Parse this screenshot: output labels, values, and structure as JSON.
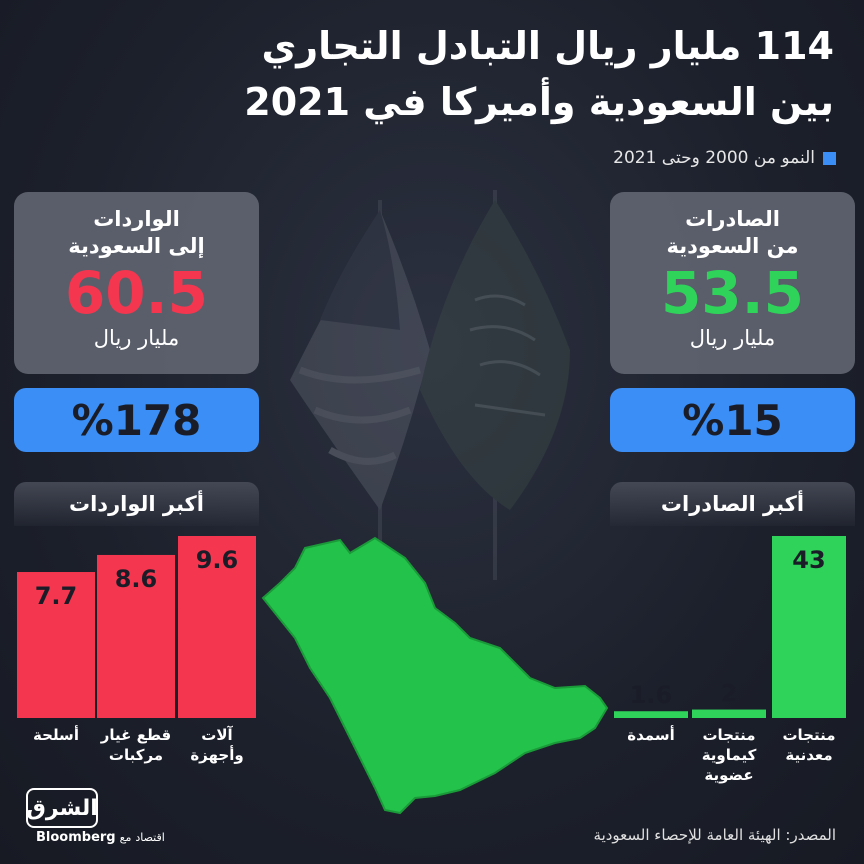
{
  "title_line1": "114 مليار ريال التبادل التجاري",
  "title_line2": "بين السعودية وأميركا في 2021",
  "legend": {
    "label": "النمو من 2000 وحتى 2021",
    "color": "#3a8ef6"
  },
  "exports_card": {
    "label_line1": "الصادرات",
    "label_line2": "من السعودية",
    "value": "53.5",
    "unit": "مليار ريال",
    "growth": "%15",
    "color": "#2fd35a"
  },
  "imports_card": {
    "label_line1": "الواردات",
    "label_line2": "إلى السعودية",
    "value": "60.5",
    "unit": "مليار ريال",
    "growth": "%178",
    "color": "#f5364f"
  },
  "exports_panel_title": "أكبر الصادرات",
  "imports_panel_title": "أكبر الواردات",
  "chart_data": [
    {
      "type": "bar",
      "title": "أكبر الصادرات",
      "categories": [
        [
          "منتجات",
          "معدنية"
        ],
        [
          "منتجات",
          "كيماوية",
          "عضوية"
        ],
        [
          "أسمدة"
        ]
      ],
      "values": [
        43,
        2,
        1.6
      ],
      "value_labels": [
        "43",
        "2",
        "1.6"
      ],
      "color": "#2fd35a",
      "ylim": [
        0,
        43
      ]
    },
    {
      "type": "bar",
      "title": "أكبر الواردات",
      "categories": [
        [
          "آلات",
          "وأجهزة"
        ],
        [
          "قطع غيار",
          "مركبات"
        ],
        [
          "أسلحة"
        ]
      ],
      "values": [
        9.6,
        8.6,
        7.7
      ],
      "value_labels": [
        "9.6",
        "8.6",
        "7.7"
      ],
      "color": "#f5364f",
      "ylim": [
        0,
        9.6
      ]
    }
  ],
  "logo": {
    "name": "الشرق",
    "sub": "اقتصاد",
    "partner_prefix": "مع",
    "partner": "Bloomberg"
  },
  "source": "المصدر: الهيئة العامة للإحصاء السعودية"
}
